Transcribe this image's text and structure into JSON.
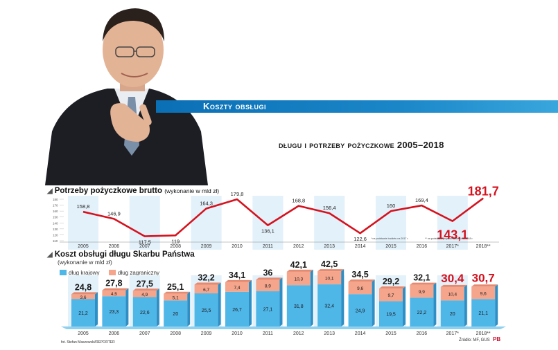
{
  "banner": {
    "title": "Koszty obsługi"
  },
  "subtitle": "długu i potrzeby pożyczkowe 2005–2018",
  "chart_data": [
    {
      "type": "line",
      "title": "Potrzeby pożyczkowe brutto",
      "unit_note": "(wykonanie w mld zł)",
      "categories": [
        "2005",
        "2006",
        "2007",
        "2008",
        "2009",
        "2010",
        "2011",
        "2012",
        "2013",
        "2014",
        "2015",
        "2016",
        "2017*",
        "2018**"
      ],
      "values": [
        158.8,
        146.9,
        117.5,
        119,
        164.3,
        179.8,
        136.1,
        168.8,
        156.4,
        122.6,
        160,
        169.4,
        143.1,
        181.7
      ],
      "value_labels": [
        "158,8",
        "146,9",
        "117,5",
        "119",
        "164,3",
        "179,8",
        "136,1",
        "168,8",
        "156,4",
        "122,6",
        "160",
        "169,4",
        "143,1",
        "181,7"
      ],
      "highlight_labels": [
        "143,1",
        "181,7"
      ],
      "yticks": [
        "180",
        "170",
        "160",
        "150",
        "140",
        "130",
        "120",
        "110"
      ],
      "ylim": [
        110,
        185
      ],
      "notes": [
        "* na podstawie budżetu na 2017 r.",
        "** na podstawie projektu budżetu na 2018 r."
      ]
    },
    {
      "type": "bar",
      "stacked": true,
      "title": "Koszt obsługi długu Skarbu Państwa",
      "unit_note": "(wykonanie w mld zł)",
      "categories": [
        "2005",
        "2006",
        "2007",
        "2008",
        "2009",
        "2010",
        "2011",
        "2012",
        "2013",
        "2014",
        "2015",
        "2016",
        "2017*",
        "2018**"
      ],
      "series": [
        {
          "name": "dług krajowy",
          "color": "#4fb6e8",
          "values": [
            21.2,
            23.3,
            22.6,
            20,
            25.5,
            26.7,
            27.1,
            31.8,
            32.4,
            24.9,
            19.5,
            22.2,
            20,
            21.1
          ],
          "labels": [
            "21,2",
            "23,3",
            "22,6",
            "20",
            "25,5",
            "26,7",
            "27,1",
            "31,8",
            "32,4",
            "24,9",
            "19,5",
            "22,2",
            "20",
            "21,1"
          ]
        },
        {
          "name": "dług zagraniczny",
          "color": "#f4a58c",
          "values": [
            3.6,
            4.5,
            4.9,
            5.1,
            6.7,
            7.4,
            8.9,
            10.3,
            10.1,
            9.6,
            9.7,
            9.9,
            10.4,
            9.6
          ],
          "labels": [
            "3,6",
            "4,5",
            "4,9",
            "5,1",
            "6,7",
            "7,4",
            "8,9",
            "10,3",
            "10,1",
            "9,6",
            "9,7",
            "9,9",
            "10,4",
            "9,6"
          ]
        }
      ],
      "totals": [
        24.8,
        27.8,
        27.5,
        25.1,
        32.2,
        34.1,
        36,
        42.1,
        42.5,
        34.5,
        29.2,
        32.1,
        30.4,
        30.7
      ],
      "total_labels": [
        "24,8",
        "27,8",
        "27,5",
        "25,1",
        "32,2",
        "34,1",
        "36",
        "42,1",
        "42,5",
        "34,5",
        "29,2",
        "32,1",
        "30,4",
        "30,7"
      ]
    }
  ],
  "credit": "fot. Stefan Maszewski/REPORTER",
  "source": "Źródło: MF, GUS",
  "logo": "PB"
}
